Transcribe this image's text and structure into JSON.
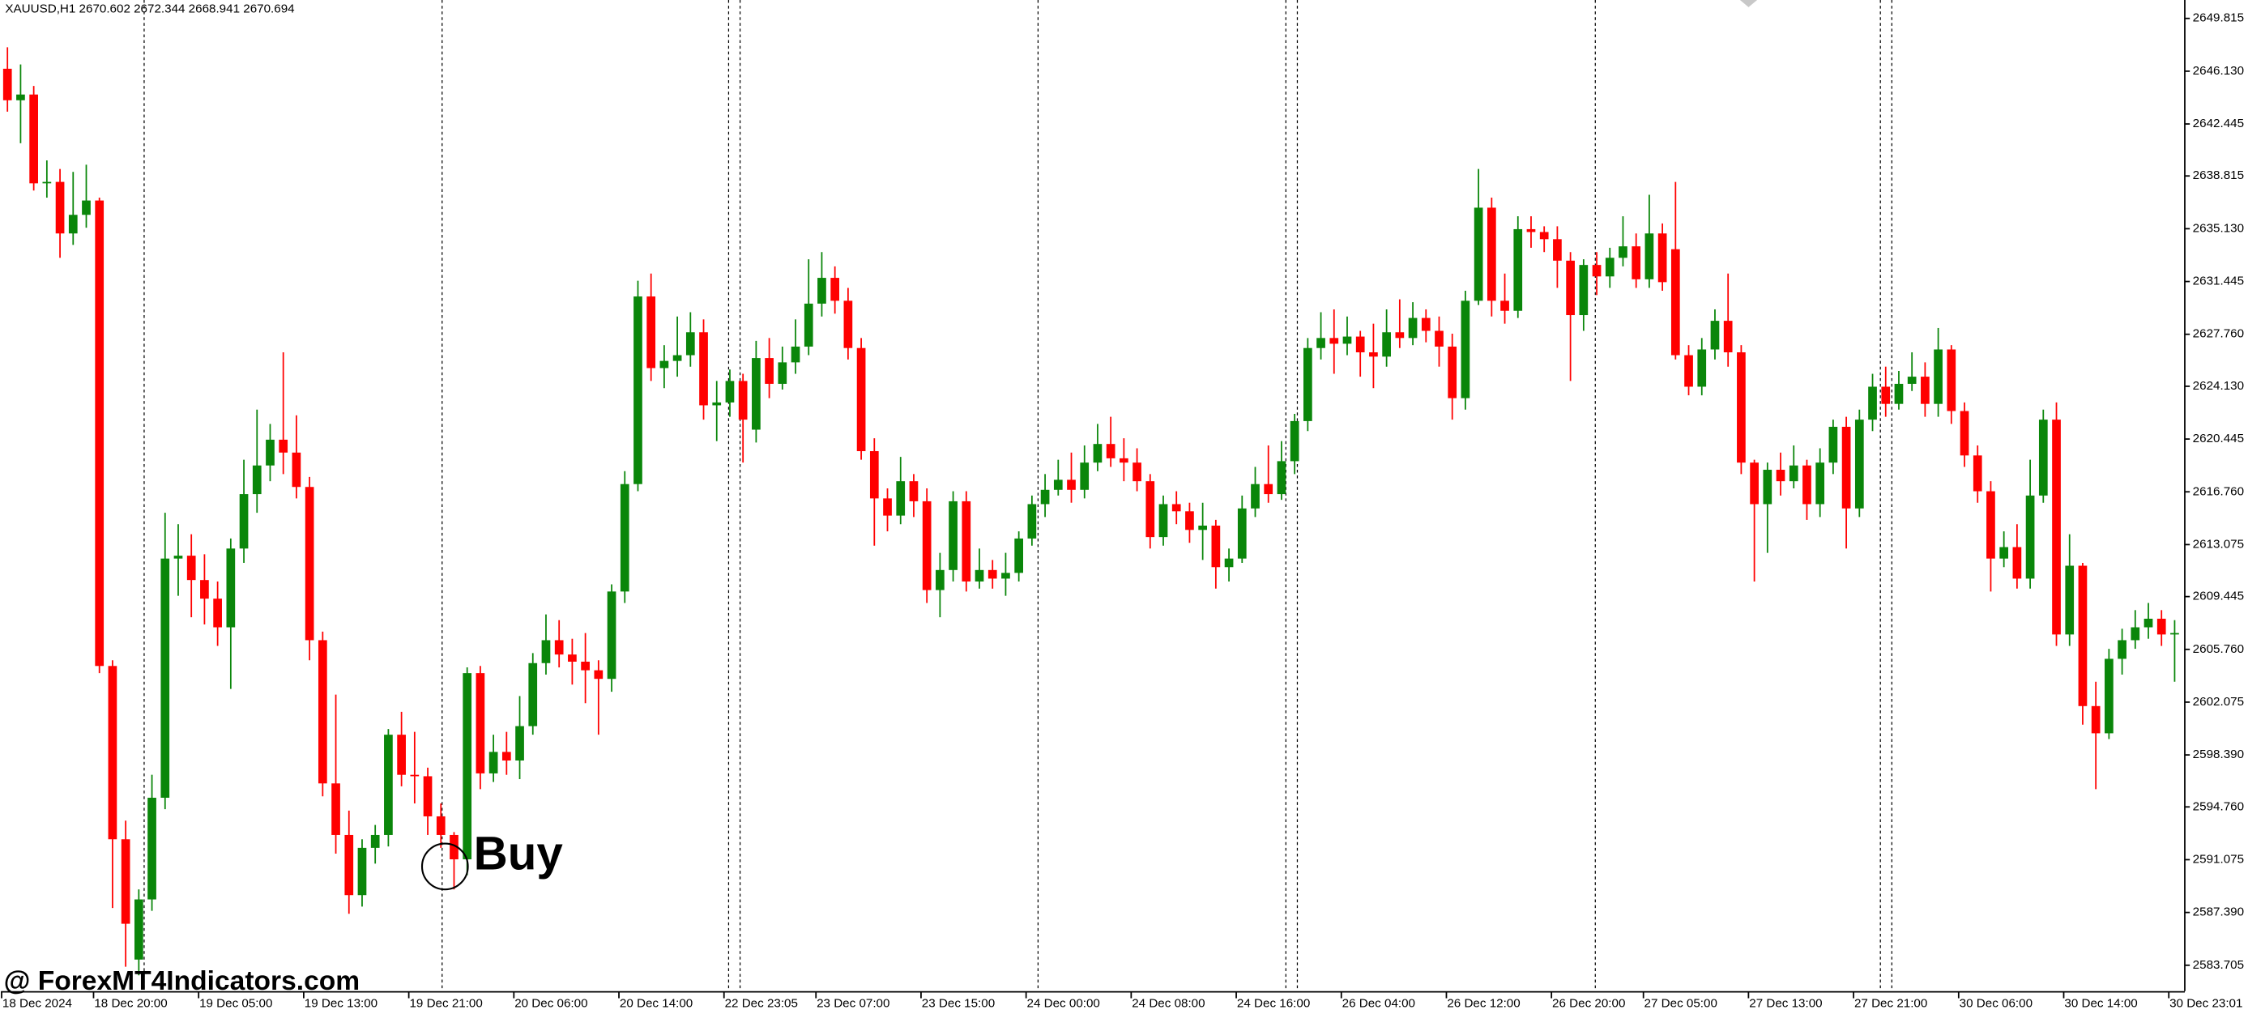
{
  "chart_data": {
    "type": "candlestick",
    "title": "XAUUSD,H1  2670.602 2672.344 2668.941 2670.694",
    "annotation": "Buy",
    "watermark": "@ ForexMT4Indicators.com",
    "up_color": "#0a860a",
    "down_color": "#ff0000",
    "categories": [
      "18 Dec 2024",
      null,
      null,
      null,
      null,
      null,
      null,
      "18 Dec 20:00",
      null,
      null,
      null,
      null,
      null,
      null,
      null,
      "19 Dec 05:00",
      null,
      null,
      null,
      null,
      null,
      null,
      null,
      "19 Dec 13:00",
      null,
      null,
      null,
      null,
      null,
      null,
      null,
      "19 Dec 21:00",
      null,
      null,
      null,
      null,
      null,
      null,
      null,
      "20 Dec 06:00",
      null,
      null,
      null,
      null,
      null,
      null,
      null,
      "20 Dec 14:00",
      null,
      null,
      null,
      null,
      null,
      null,
      null,
      "22 Dec 23:05",
      null,
      null,
      null,
      null,
      null,
      null,
      "23 Dec 07:00",
      null,
      null,
      null,
      null,
      null,
      null,
      null,
      "23 Dec 15:00",
      null,
      null,
      null,
      null,
      null,
      null,
      null,
      "24 Dec 00:00",
      null,
      null,
      null,
      null,
      null,
      null,
      null,
      "24 Dec 08:00",
      null,
      null,
      null,
      null,
      null,
      null,
      null,
      "24 Dec 16:00",
      null,
      null,
      null,
      null,
      null,
      null,
      null,
      "26 Dec 04:00",
      null,
      null,
      null,
      null,
      null,
      null,
      null,
      "26 Dec 12:00",
      null,
      null,
      null,
      null,
      null,
      null,
      null,
      "26 Dec 20:00",
      null,
      null,
      null,
      null,
      null,
      null,
      "27 Dec 05:00",
      null,
      null,
      null,
      null,
      null,
      null,
      null,
      "27 Dec 13:00",
      null,
      null,
      null,
      null,
      null,
      null,
      null,
      "27 Dec 21:00",
      null,
      null,
      null,
      null,
      null,
      null,
      null,
      "30 Dec 06:00",
      null,
      null,
      null,
      null,
      null,
      null,
      null,
      "30 Dec 14:00",
      null,
      null,
      null,
      null,
      null,
      null,
      null,
      "30 Dec 23:01"
    ],
    "open": [
      2646.3,
      2644.1,
      2644.5,
      2638.3,
      2638.4,
      2634.8,
      2636.1,
      2637.1,
      2604.6,
      2592.5,
      2584.1,
      2588.3,
      2595.4,
      2612.1,
      2612.3,
      2610.6,
      2609.3,
      2607.3,
      2612.8,
      2616.6,
      2618.6,
      2620.4,
      2619.5,
      2617.1,
      2606.4,
      2596.4,
      2592.8,
      2588.6,
      2591.9,
      2592.8,
      2599.8,
      2597.0,
      2596.9,
      2594.1,
      2592.8,
      2591.1,
      2604.1,
      2597.1,
      2598.6,
      2598.0,
      2600.4,
      2604.8,
      2606.4,
      2605.4,
      2604.9,
      2604.3,
      2603.7,
      2609.8,
      2617.3,
      2630.4,
      2625.4,
      2625.9,
      2626.3,
      2627.9,
      2622.8,
      2623.0,
      2624.5,
      2621.1,
      2626.1,
      2624.3,
      2625.8,
      2626.9,
      2629.9,
      2631.7,
      2630.1,
      2626.8,
      2619.6,
      2616.3,
      2615.1,
      2617.5,
      2616.1,
      2609.9,
      2611.3,
      2616.1,
      2610.5,
      2611.3,
      2610.7,
      2611.1,
      2613.5,
      2615.9,
      2616.9,
      2617.6,
      2616.9,
      2618.8,
      2620.1,
      2619.1,
      2618.8,
      2617.5,
      2613.6,
      2615.9,
      2615.4,
      2614.1,
      2614.4,
      2611.5,
      2612.1,
      2615.6,
      2617.3,
      2616.6,
      2618.9,
      2621.7,
      2626.8,
      2627.5,
      2627.1,
      2627.6,
      2626.5,
      2626.2,
      2627.9,
      2627.5,
      2628.9,
      2628.0,
      2626.9,
      2623.3,
      2630.1,
      2636.6,
      2630.1,
      2629.4,
      2635.1,
      2634.9,
      2634.4,
      2632.9,
      2629.1,
      2632.6,
      2631.8,
      2633.1,
      2633.9,
      2631.6,
      2634.8,
      2633.7,
      2626.3,
      2624.1,
      2626.7,
      2628.7,
      2626.5,
      2618.8,
      2615.9,
      2618.3,
      2617.5,
      2618.6,
      2615.9,
      2618.8,
      2621.3,
      2615.6,
      2621.8,
      2624.1,
      2622.9,
      2624.3,
      2624.8,
      2622.9,
      2626.7,
      2622.4,
      2619.3,
      2616.8,
      2612.1,
      2612.9,
      2610.7,
      2616.5,
      2621.8,
      2606.8,
      2611.6,
      2601.8,
      2599.9,
      2605.1,
      2606.4,
      2607.3,
      2607.9,
      2606.8
    ],
    "high": [
      2647.8,
      2646.6,
      2645.1,
      2639.9,
      2639.3,
      2639.1,
      2639.6,
      2637.3,
      2605.0,
      2593.8,
      2589.0,
      2597.0,
      2615.3,
      2614.5,
      2613.8,
      2612.4,
      2610.5,
      2613.5,
      2619.0,
      2622.5,
      2621.5,
      2626.5,
      2622.1,
      2617.8,
      2607.0,
      2602.6,
      2594.5,
      2592.5,
      2593.5,
      2600.2,
      2601.4,
      2600.0,
      2597.5,
      2595.0,
      2593.0,
      2604.5,
      2604.6,
      2599.8,
      2600.0,
      2602.5,
      2605.5,
      2608.2,
      2607.8,
      2606.5,
      2606.9,
      2605.0,
      2610.3,
      2618.2,
      2631.5,
      2632.0,
      2627.0,
      2629.0,
      2629.3,
      2628.8,
      2624.5,
      2625.3,
      2625.0,
      2627.3,
      2627.5,
      2626.9,
      2628.8,
      2633.0,
      2633.5,
      2632.5,
      2631.0,
      2627.5,
      2620.5,
      2617.0,
      2619.2,
      2618.0,
      2617.0,
      2612.5,
      2616.8,
      2616.8,
      2612.8,
      2612.0,
      2612.5,
      2614.0,
      2616.5,
      2618.0,
      2619.0,
      2619.5,
      2620.0,
      2621.5,
      2622.0,
      2620.5,
      2619.8,
      2618.0,
      2616.5,
      2616.8,
      2616.0,
      2616.0,
      2614.8,
      2612.8,
      2616.5,
      2618.5,
      2620.0,
      2620.3,
      2622.2,
      2627.5,
      2629.3,
      2629.5,
      2629.0,
      2628.0,
      2628.5,
      2629.5,
      2630.2,
      2630.0,
      2629.5,
      2629.0,
      2627.8,
      2630.8,
      2639.3,
      2637.3,
      2632.0,
      2636.0,
      2636.0,
      2635.3,
      2635.3,
      2633.5,
      2633.0,
      2633.5,
      2633.8,
      2636.0,
      2634.8,
      2637.5,
      2635.5,
      2638.4,
      2627.0,
      2627.5,
      2629.5,
      2632.0,
      2627.0,
      2619.0,
      2618.8,
      2619.5,
      2620.0,
      2619.0,
      2619.8,
      2621.8,
      2622.0,
      2622.5,
      2625.0,
      2625.5,
      2625.2,
      2626.5,
      2625.8,
      2628.2,
      2627.0,
      2623.0,
      2620.0,
      2617.5,
      2614.0,
      2614.5,
      2619.0,
      2622.5,
      2623.0,
      2613.8,
      2611.8,
      2603.5,
      2605.8,
      2607.2,
      2608.5,
      2609.0,
      2608.5,
      2607.8
    ],
    "low": [
      2643.3,
      2641.1,
      2637.8,
      2637.3,
      2633.1,
      2634.0,
      2635.2,
      2604.1,
      2587.7,
      2583.6,
      2583.0,
      2587.5,
      2594.6,
      2609.5,
      2608.0,
      2607.5,
      2606.0,
      2603.0,
      2611.8,
      2615.3,
      2617.5,
      2618.0,
      2616.3,
      2605.0,
      2595.5,
      2591.5,
      2587.3,
      2587.8,
      2590.8,
      2592.0,
      2596.2,
      2595.0,
      2592.8,
      2591.9,
      2589.0,
      2590.0,
      2596.0,
      2596.5,
      2597.0,
      2596.7,
      2599.8,
      2604.0,
      2604.5,
      2603.3,
      2602.0,
      2599.8,
      2602.8,
      2609.0,
      2616.8,
      2624.5,
      2624.0,
      2624.8,
      2625.5,
      2621.8,
      2620.3,
      2622.0,
      2618.8,
      2620.2,
      2623.3,
      2623.9,
      2625.0,
      2626.3,
      2629.0,
      2629.2,
      2626.0,
      2619.0,
      2613.0,
      2614.0,
      2614.5,
      2615.0,
      2609.0,
      2608.0,
      2610.5,
      2609.8,
      2610.0,
      2610.0,
      2609.5,
      2610.5,
      2613.0,
      2615.0,
      2616.5,
      2616.0,
      2616.3,
      2618.2,
      2618.5,
      2617.5,
      2616.8,
      2612.8,
      2613.0,
      2614.5,
      2613.2,
      2612.0,
      2610.0,
      2610.5,
      2611.8,
      2615.0,
      2616.0,
      2616.2,
      2618.0,
      2621.0,
      2626.0,
      2625.0,
      2626.3,
      2624.8,
      2624.0,
      2625.5,
      2626.8,
      2627.0,
      2627.2,
      2625.5,
      2621.8,
      2622.5,
      2629.8,
      2629.0,
      2628.5,
      2628.9,
      2633.8,
      2633.5,
      2631.0,
      2624.5,
      2628.0,
      2630.5,
      2631.0,
      2632.5,
      2631.0,
      2631.0,
      2630.8,
      2626.0,
      2623.5,
      2623.5,
      2626.0,
      2625.5,
      2618.0,
      2610.5,
      2612.5,
      2616.5,
      2617.0,
      2614.8,
      2615.0,
      2618.0,
      2612.8,
      2615.0,
      2621.0,
      2622.0,
      2622.5,
      2623.8,
      2622.0,
      2622.0,
      2621.5,
      2618.5,
      2616.0,
      2609.8,
      2611.5,
      2610.0,
      2610.0,
      2616.0,
      2606.0,
      2606.0,
      2600.5,
      2596.0,
      2599.5,
      2604.0,
      2605.8,
      2606.5,
      2606.0,
      2603.5
    ],
    "close": [
      2644.1,
      2644.5,
      2638.3,
      2638.4,
      2634.8,
      2636.1,
      2637.1,
      2604.6,
      2592.5,
      2586.6,
      2588.3,
      2595.4,
      2612.1,
      2612.3,
      2610.6,
      2609.3,
      2607.3,
      2612.8,
      2616.6,
      2618.6,
      2620.4,
      2619.5,
      2617.1,
      2606.4,
      2596.4,
      2592.8,
      2588.6,
      2591.9,
      2592.8,
      2599.8,
      2597.0,
      2596.9,
      2594.1,
      2592.8,
      2591.1,
      2604.1,
      2597.1,
      2598.6,
      2598.0,
      2600.4,
      2604.8,
      2606.4,
      2605.4,
      2604.9,
      2604.3,
      2603.7,
      2609.8,
      2617.3,
      2630.4,
      2625.4,
      2625.9,
      2626.3,
      2627.9,
      2622.8,
      2623.0,
      2624.5,
      2621.8,
      2626.1,
      2624.3,
      2625.8,
      2626.9,
      2629.9,
      2631.7,
      2630.1,
      2626.8,
      2619.6,
      2616.3,
      2615.1,
      2617.5,
      2616.1,
      2609.9,
      2611.3,
      2616.1,
      2610.5,
      2611.3,
      2610.7,
      2611.1,
      2613.5,
      2615.9,
      2616.9,
      2617.6,
      2616.9,
      2618.8,
      2620.1,
      2619.1,
      2618.8,
      2617.5,
      2613.6,
      2615.9,
      2615.4,
      2614.1,
      2614.4,
      2611.5,
      2612.1,
      2615.6,
      2617.3,
      2616.6,
      2618.9,
      2621.7,
      2626.8,
      2627.5,
      2627.1,
      2627.6,
      2626.5,
      2626.2,
      2627.9,
      2627.5,
      2628.9,
      2628.0,
      2626.9,
      2623.3,
      2630.1,
      2636.6,
      2630.1,
      2629.4,
      2635.1,
      2634.9,
      2634.4,
      2632.9,
      2629.1,
      2632.6,
      2631.8,
      2633.1,
      2633.9,
      2631.6,
      2634.8,
      2631.4,
      2626.3,
      2624.1,
      2626.7,
      2628.7,
      2626.5,
      2618.8,
      2615.9,
      2618.3,
      2617.5,
      2618.6,
      2615.9,
      2618.8,
      2621.3,
      2615.6,
      2621.8,
      2624.1,
      2622.9,
      2624.3,
      2624.8,
      2622.9,
      2626.7,
      2622.4,
      2619.3,
      2616.8,
      2612.1,
      2612.9,
      2610.7,
      2616.5,
      2621.8,
      2606.8,
      2611.6,
      2601.8,
      2599.9,
      2605.1,
      2606.4,
      2607.3,
      2607.9,
      2606.8,
      2606.9
    ],
    "ylim": [
      2581.9,
      2651.1
    ],
    "yticks": [
      2649.815,
      {
        "value": 2646.13,
        "label": "2646.130"
      },
      2642.445,
      2638.815,
      {
        "value": 2635.13,
        "label": "2635.130"
      },
      2631.445,
      {
        "value": 2627.76,
        "label": "2627.760"
      },
      {
        "value": 2624.13,
        "label": "2624.130"
      },
      2620.445,
      {
        "value": 2616.76,
        "label": "2616.760"
      },
      2613.075,
      2609.445,
      {
        "value": 2605.76,
        "label": "2605.760"
      },
      2602.075,
      {
        "value": 2598.39,
        "label": "2598.390"
      },
      {
        "value": 2594.76,
        "label": "2594.760"
      },
      2591.075,
      {
        "value": 2587.39,
        "label": "2587.390"
      },
      2583.705
    ]
  }
}
